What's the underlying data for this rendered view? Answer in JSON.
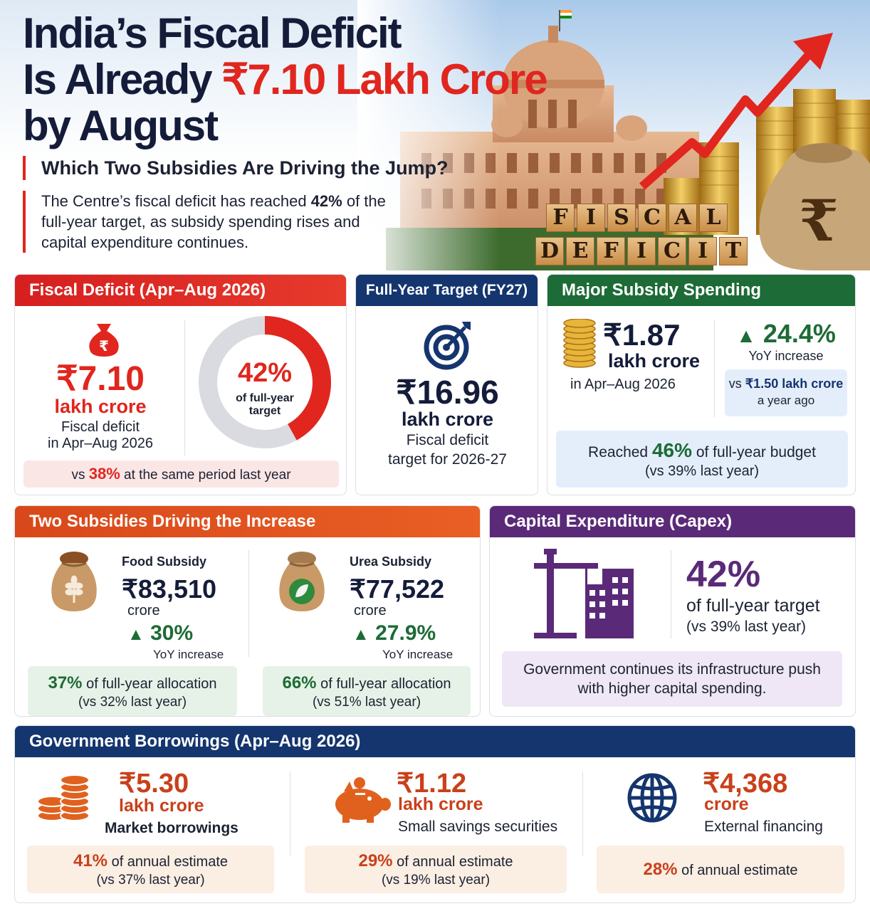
{
  "hero": {
    "title_line1": "India’s Fiscal Deficit",
    "title_line2_a": "Is Already ",
    "title_line2_b": "₹7.10 Lakh Crore",
    "title_line3": "by August",
    "subtitle": "Which Two Subsidies Are Driving the Jump?",
    "intro_a": "The Centre’s fiscal deficit has reached ",
    "intro_b": "42%",
    "intro_c": " of the full-year target, as subsidy spending rises and capital expenditure continues.",
    "tiles_row1": [
      "F",
      "I",
      "S",
      "C",
      "A",
      "L"
    ],
    "tiles_row2": [
      "D",
      "E",
      "F",
      "I",
      "C",
      "I",
      "T"
    ],
    "rupee_symbol": "₹",
    "accent": "#e0261e"
  },
  "fiscal_deficit": {
    "header": "Fiscal Deficit (Apr–Aug 2026)",
    "icon": "money-bag-icon",
    "icon_symbol": "₹",
    "value": "₹7.10",
    "unit": "lakh crore",
    "desc1": "Fiscal deficit",
    "desc2": "in Apr–Aug 2026",
    "donut_percent": 42,
    "donut_value": "42%",
    "donut_label1": "of full-year",
    "donut_label2": "target",
    "compare_a": "vs ",
    "compare_b": "38%",
    "compare_c": " at the same period last year"
  },
  "target": {
    "header": "Full-Year Target (FY27)",
    "icon": "target-icon",
    "value": "₹16.96",
    "unit": "lakh crore",
    "desc1": "Fiscal deficit",
    "desc2": "target for 2026-27"
  },
  "subsidy": {
    "header": "Major Subsidy Spending",
    "icon": "coins-icon",
    "value": "₹1.87",
    "unit": "lakh crore",
    "period": "in Apr–Aug 2026",
    "growth": "24.4%",
    "growth_label": "YoY increase",
    "prev_a": "vs ",
    "prev_b": "₹1.50 lakh crore",
    "prev_c": "a year ago",
    "budget_a": "Reached ",
    "budget_b": "46%",
    "budget_c": " of full-year budget",
    "budget_d": "(vs 39% last year)"
  },
  "two_subsidies": {
    "header": "Two Subsidies Driving the Increase",
    "items": [
      {
        "icon": "grain-sack-icon",
        "title": "Food Subsidy",
        "value": "₹83,510",
        "unit": "crore",
        "growth": "30%",
        "growth_label": "YoY increase",
        "share": "37%",
        "share_text": " of full-year allocation",
        "share_prev": "(vs 32% last year)"
      },
      {
        "icon": "fertilizer-sack-icon",
        "title": "Urea Subsidy",
        "value": "₹77,522",
        "unit": "crore",
        "growth": "27.9%",
        "growth_label": "YoY increase",
        "share": "66%",
        "share_text": " of full-year allocation",
        "share_prev": "(vs 51% last year)"
      }
    ]
  },
  "capex": {
    "header": "Capital Expenditure (Capex)",
    "icon": "construction-crane-icon",
    "value": "42%",
    "desc": "of full-year target",
    "prev": "(vs 39% last year)",
    "note1": "Government continues its infrastructure push",
    "note2": "with higher capital spending."
  },
  "borrowings": {
    "header": "Government Borrowings (Apr–Aug 2026)",
    "items": [
      {
        "icon": "coin-stack-icon",
        "value": "₹5.30",
        "unit": "lakh crore",
        "label": "Market borrowings",
        "share": "41%",
        "share_text": " of annual estimate",
        "share_prev": "(vs 37% last year)"
      },
      {
        "icon": "piggy-bank-icon",
        "value": "₹1.12",
        "unit": "lakh crore",
        "label": "Small savings securities",
        "share": "29%",
        "share_text": " of annual estimate",
        "share_prev": "(vs 19% last year)"
      },
      {
        "icon": "globe-icon",
        "value": "₹4,368",
        "unit": "crore",
        "label": "External financing",
        "share": "28%",
        "share_text": " of annual estimate",
        "share_prev": ""
      }
    ]
  },
  "colors": {
    "red": "#e0261e",
    "navy": "#14356e",
    "green": "#1d6b36",
    "orange": "#d8481a",
    "purple": "#5a2a78"
  }
}
